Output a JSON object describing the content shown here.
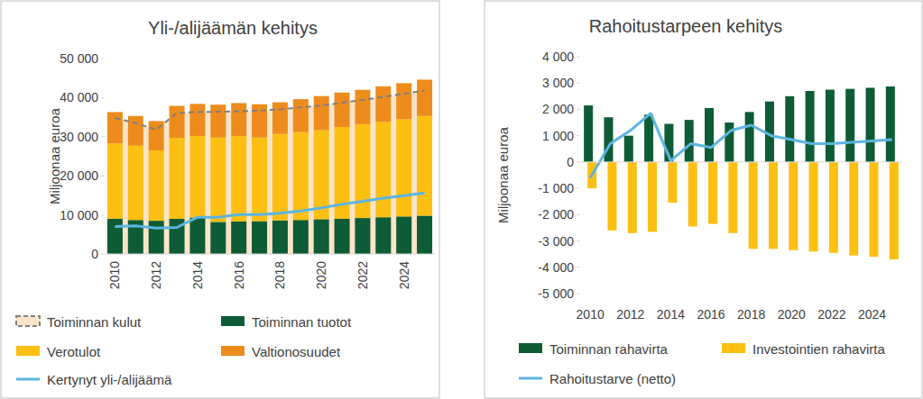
{
  "chart_data": [
    {
      "type": "bar",
      "title": "Yli-/alijäämän kehitys",
      "y_label": "Miljoonaa euroa",
      "stacked": true,
      "categories": [
        "2010",
        null,
        "2012",
        null,
        "2014",
        null,
        "2016",
        null,
        "2018",
        null,
        "2020",
        null,
        "2022",
        null,
        "2024",
        null
      ],
      "series": [
        {
          "name": "Toiminnan kulut",
          "type": "area",
          "line_style": "dashed",
          "color": "#fce4c8",
          "values": [
            34800,
            33500,
            31800,
            36100,
            36300,
            36400,
            36500,
            36700,
            37000,
            37500,
            38000,
            38700,
            39400,
            40200,
            41000,
            41800
          ]
        },
        {
          "name": "Toiminnan tuotot",
          "type": "bar",
          "color": "#0d5c36",
          "values": [
            9000,
            8700,
            8500,
            9000,
            9300,
            8200,
            8300,
            8400,
            8600,
            8700,
            8900,
            9000,
            9200,
            9400,
            9600,
            9800
          ]
        },
        {
          "name": "Verotulot",
          "type": "bar",
          "color": "#fdbf12",
          "values": [
            19300,
            19000,
            18000,
            20700,
            20900,
            21600,
            21900,
            21400,
            22100,
            22500,
            22800,
            23500,
            24000,
            24400,
            24900,
            25500
          ]
        },
        {
          "name": "Valtionosuudet",
          "type": "bar",
          "color": "#ed8c1c",
          "values": [
            8000,
            7600,
            7500,
            8200,
            8200,
            8400,
            8400,
            8500,
            8100,
            8400,
            8700,
            8800,
            8800,
            9100,
            9200,
            9300
          ]
        },
        {
          "name": "Kertynyt yli-/alijäämä",
          "type": "line",
          "color": "#5bb5e3",
          "values": [
            7000,
            7200,
            6600,
            6800,
            9400,
            9400,
            10100,
            10100,
            10400,
            11000,
            11800,
            12700,
            13500,
            14300,
            14900,
            15600
          ]
        }
      ],
      "ylim": [
        0,
        50000
      ],
      "yticks": [
        0,
        {
          "value": 10000,
          "label": "10 000"
        },
        {
          "value": 20000,
          "label": "20 000"
        },
        {
          "value": 30000,
          "label": "30 000"
        },
        {
          "value": 40000,
          "label": "40 000"
        },
        {
          "value": 50000,
          "label": "50 000"
        }
      ]
    },
    {
      "type": "bar",
      "title": "Rahoitustarpeen kehitys",
      "y_label": "Miljoonaa euroa",
      "categories": [
        "2010",
        null,
        "2012",
        null,
        "2014",
        null,
        "2016",
        null,
        "2018",
        null,
        "2020",
        null,
        "2022",
        null,
        "2024",
        null
      ],
      "series": [
        {
          "name": "Toiminnan rahavirta",
          "type": "bar",
          "color": "#0d5c36",
          "values": [
            2150,
            1700,
            1000,
            1800,
            1450,
            1600,
            2050,
            1500,
            1900,
            2300,
            2500,
            2700,
            2750,
            2780,
            2820,
            2870
          ]
        },
        {
          "name": "Investointien rahavirta",
          "type": "bar",
          "color": "#fdbf12",
          "values": [
            -1000,
            -2600,
            -2700,
            -2650,
            -1550,
            -2450,
            -2350,
            -2700,
            -3300,
            -3300,
            -3350,
            -3400,
            -3450,
            -3550,
            -3600,
            -3700
          ]
        },
        {
          "name": "Rahoitustarve (netto)",
          "type": "line",
          "color": "#5bb5e3",
          "values": [
            -600,
            700,
            1200,
            1850,
            50,
            700,
            550,
            1200,
            1400,
            1000,
            850,
            700,
            700,
            750,
            800,
            850
          ]
        }
      ],
      "ylim": [
        -5000,
        4000
      ],
      "yticks": [
        {
          "value": -5000,
          "label": "-5 000"
        },
        {
          "value": -4000,
          "label": "-4 000"
        },
        {
          "value": -3000,
          "label": "-3 000"
        },
        {
          "value": -2000,
          "label": "-2 000"
        },
        {
          "value": -1000,
          "label": "-1 000"
        },
        0,
        {
          "value": 1000,
          "label": "1 000"
        },
        {
          "value": 2000,
          "label": "2 000"
        },
        {
          "value": 3000,
          "label": "3 000"
        },
        {
          "value": 4000,
          "label": "4 000"
        }
      ]
    }
  ]
}
